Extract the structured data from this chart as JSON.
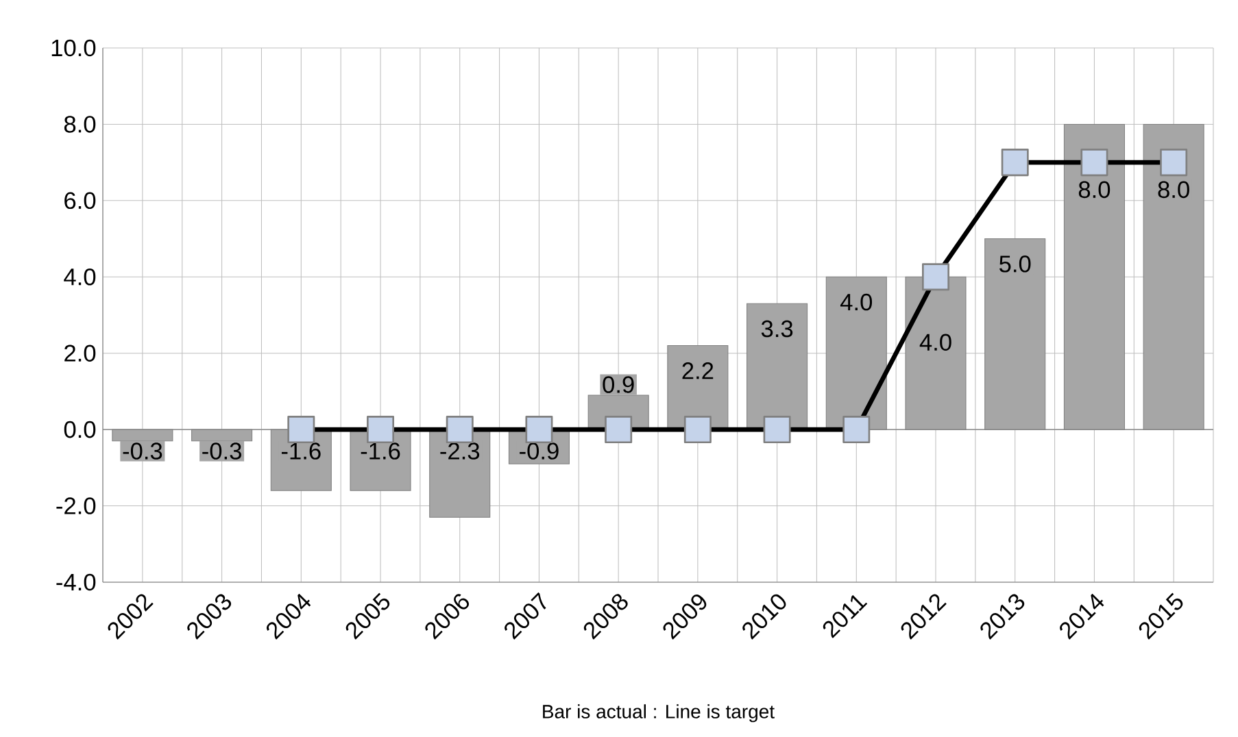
{
  "chart_data": {
    "type": "bar",
    "xlabel": "Bar is actual : Line is target",
    "categories": [
      "2002",
      "2003",
      "2004",
      "2005",
      "2006",
      "2007",
      "2008",
      "2009",
      "2010",
      "2011",
      "2012",
      "2013",
      "2014",
      "2015"
    ],
    "series": [
      {
        "color": "#a6a6a6",
        "values": [
          -0.3,
          -0.3,
          -1.6,
          -1.6,
          -2.3,
          -0.9,
          0.9,
          2.2,
          3.3,
          4.0,
          4.0,
          5.0,
          8.0,
          8.0
        ],
        "value_labels": [
          "-0.3",
          "-0.3",
          "-1.6",
          "-1.6",
          "-2.3",
          "-0.9",
          "0.9",
          "2.2",
          "3.3",
          "4.0",
          "4.0",
          "5.0",
          "8.0",
          "8.0"
        ]
      },
      {
        "type": "line",
        "color": "#000000",
        "marker": "square",
        "values": [
          null,
          null,
          0,
          0,
          0,
          0,
          0,
          0,
          0,
          0,
          4,
          7,
          7,
          7
        ]
      }
    ],
    "ylim": [
      -4,
      10
    ],
    "yticks": [
      {
        "value": -4,
        "label": "-4.0"
      },
      {
        "value": -2,
        "label": "-2.0"
      },
      {
        "value": 0,
        "label": "0.0"
      },
      {
        "value": 2,
        "label": "2.0"
      },
      {
        "value": 4,
        "label": "4.0"
      },
      {
        "value": 6,
        "label": "6.0"
      },
      {
        "value": 8,
        "label": "8.0"
      },
      {
        "value": 10,
        "label": "10.0"
      }
    ],
    "grid": true
  }
}
